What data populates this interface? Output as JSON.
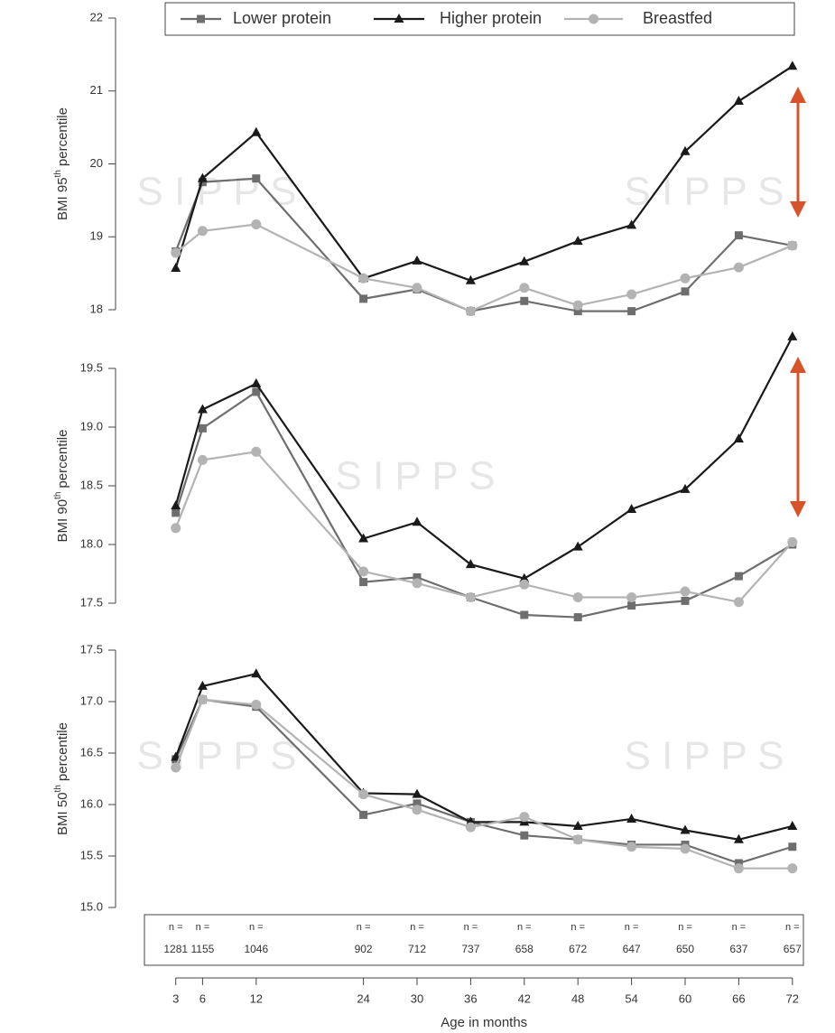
{
  "chart_data": [
    {
      "type": "line",
      "ylabel": [
        "BMI 95",
        "th",
        "percentile"
      ],
      "x": [
        3,
        6,
        12,
        24,
        30,
        36,
        42,
        48,
        54,
        60,
        66,
        72
      ],
      "xlim": [
        0,
        74
      ],
      "ylim": [
        18,
        22
      ],
      "yticks": [
        18,
        19,
        20,
        21,
        22
      ],
      "legend": "top",
      "series": [
        {
          "name": "Lower protein",
          "color": "#6e6e6e",
          "marker": "square",
          "values": [
            18.8,
            19.75,
            19.8,
            18.15,
            18.28,
            17.98,
            18.12,
            17.98,
            17.98,
            18.25,
            19.02,
            18.88
          ]
        },
        {
          "name": "Higher protein",
          "color": "#1a1a1a",
          "marker": "triangle",
          "values": [
            18.57,
            19.8,
            20.43,
            18.43,
            18.67,
            18.4,
            18.66,
            18.94,
            19.16,
            20.17,
            20.86,
            21.34
          ]
        },
        {
          "name": "Breastfed",
          "color": "#b3b3b3",
          "marker": "circle",
          "values": [
            18.78,
            19.08,
            19.17,
            18.43,
            18.3,
            17.98,
            18.3,
            18.06,
            18.21,
            18.43,
            18.58,
            18.88
          ]
        }
      ]
    },
    {
      "type": "line",
      "ylabel": [
        "BMI 90",
        "th",
        "percentile"
      ],
      "x": [
        3,
        6,
        12,
        24,
        30,
        36,
        42,
        48,
        54,
        60,
        66,
        72
      ],
      "xlim": [
        0,
        74
      ],
      "ylim": [
        17.5,
        19.5
      ],
      "yticks": [
        {
          "value": 17.5,
          "label": "17.5"
        },
        {
          "value": 18,
          "label": "18.0"
        },
        {
          "value": 18.5,
          "label": "18.5"
        },
        {
          "value": 19,
          "label": "19.0"
        },
        {
          "value": 19.5,
          "label": "19.5"
        }
      ],
      "series": [
        {
          "name": "Lower protein",
          "color": "#6e6e6e",
          "marker": "square",
          "values": [
            18.27,
            18.99,
            19.3,
            17.68,
            17.72,
            17.55,
            17.4,
            17.38,
            17.48,
            17.52,
            17.73,
            18.0
          ]
        },
        {
          "name": "Higher protein",
          "color": "#1a1a1a",
          "marker": "triangle",
          "values": [
            18.33,
            19.15,
            19.37,
            18.05,
            18.19,
            17.83,
            17.71,
            17.98,
            18.3,
            18.47,
            18.9,
            19.77
          ]
        },
        {
          "name": "Breastfed",
          "color": "#b3b3b3",
          "marker": "circle",
          "values": [
            18.14,
            18.72,
            18.79,
            17.77,
            17.67,
            17.55,
            17.66,
            17.55,
            17.55,
            17.6,
            17.51,
            18.02
          ]
        }
      ]
    },
    {
      "type": "line",
      "ylabel": [
        "BMI 50",
        "th",
        "percentile"
      ],
      "x": [
        3,
        6,
        12,
        24,
        30,
        36,
        42,
        48,
        54,
        60,
        66,
        72
      ],
      "xlim": [
        0,
        74
      ],
      "ylim": [
        15,
        17.5
      ],
      "yticks": [
        {
          "value": 15,
          "label": "15.0"
        },
        {
          "value": 15.5,
          "label": "15.5"
        },
        {
          "value": 16,
          "label": "16.0"
        },
        {
          "value": 16.5,
          "label": "16.5"
        },
        {
          "value": 17,
          "label": "17.0"
        },
        {
          "value": 17.5,
          "label": "17.5"
        }
      ],
      "xlabel": "Age in months",
      "xticks": [
        3,
        6,
        12,
        24,
        30,
        36,
        42,
        48,
        54,
        60,
        66,
        72
      ],
      "series": [
        {
          "name": "Lower protein",
          "color": "#6e6e6e",
          "marker": "square",
          "values": [
            16.44,
            17.02,
            16.95,
            15.9,
            16.01,
            15.83,
            15.7,
            15.66,
            15.61,
            15.61,
            15.43,
            15.59
          ]
        },
        {
          "name": "Higher protein",
          "color": "#1a1a1a",
          "marker": "triangle",
          "values": [
            16.46,
            17.15,
            17.27,
            16.11,
            16.1,
            15.83,
            15.83,
            15.79,
            15.86,
            15.75,
            15.66,
            15.79
          ]
        },
        {
          "name": "Breastfed",
          "color": "#b3b3b3",
          "marker": "circle",
          "values": [
            16.36,
            17.02,
            16.97,
            16.1,
            15.95,
            15.78,
            15.88,
            15.66,
            15.59,
            15.57,
            15.38,
            15.38
          ]
        }
      ]
    }
  ],
  "n_table": {
    "label": "n =",
    "x": [
      3,
      6,
      12,
      24,
      30,
      36,
      42,
      48,
      54,
      60,
      66,
      72
    ],
    "counts": [
      "1281",
      "1155",
      "1046",
      "902",
      "712",
      "737",
      "658",
      "672",
      "647",
      "650",
      "637",
      "657"
    ]
  },
  "watermark": "S I P P S"
}
